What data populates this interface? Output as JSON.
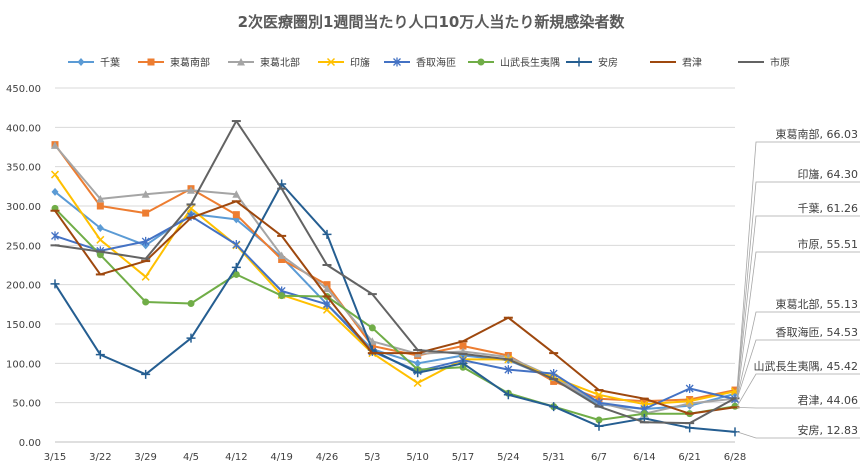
{
  "chart_data": {
    "type": "line",
    "title": "2次医療圏別1週間当たり人口10万人当たり新規感染者数",
    "xlabel": "",
    "ylabel": "",
    "ylim": [
      0,
      450
    ],
    "yticks": [
      "0.00",
      "50.00",
      "100.00",
      "150.00",
      "200.00",
      "250.00",
      "300.00",
      "350.00",
      "400.00",
      "450.00"
    ],
    "categories": [
      "3/15",
      "3/22",
      "3/29",
      "4/5",
      "4/12",
      "4/19",
      "4/26",
      "5/3",
      "5/10",
      "5/17",
      "5/24",
      "5/31",
      "6/7",
      "6/14",
      "6/21",
      "6/28"
    ],
    "grid": true,
    "legend": "top",
    "series": [
      {
        "name": "千葉",
        "color": "#5B9BD5",
        "marker": "diamond",
        "values": [
          318,
          272,
          250,
          290,
          283,
          235,
          175,
          118,
          100,
          110,
          104,
          80,
          48,
          42,
          46,
          61.26
        ]
      },
      {
        "name": "東葛南部",
        "color": "#ED7D31",
        "marker": "square",
        "values": [
          378,
          300,
          291,
          322,
          289,
          232,
          200,
          122,
          110,
          122,
          110,
          77,
          55,
          52,
          54,
          66.03
        ]
      },
      {
        "name": "東葛北部",
        "color": "#A5A5A5",
        "marker": "triangle",
        "values": [
          377,
          309,
          315,
          320,
          315,
          237,
          195,
          128,
          112,
          115,
          108,
          82,
          50,
          36,
          49,
          55.13
        ]
      },
      {
        "name": "印旛",
        "color": "#FFC000",
        "marker": "x",
        "values": [
          340,
          257,
          210,
          297,
          250,
          187,
          168,
          113,
          75,
          105,
          105,
          82,
          60,
          48,
          52,
          64.3
        ]
      },
      {
        "name": "香取海匝",
        "color": "#4472C4",
        "marker": "asterisk",
        "values": [
          262,
          243,
          255,
          287,
          251,
          192,
          175,
          115,
          90,
          104,
          92,
          87,
          50,
          42,
          68,
          54.53
        ]
      },
      {
        "name": "山武長生夷隅",
        "color": "#70AD47",
        "marker": "circle",
        "values": [
          297,
          238,
          178,
          176,
          213,
          186,
          185,
          145,
          92,
          95,
          62,
          45,
          28,
          36,
          36,
          45.42
        ]
      },
      {
        "name": "安房",
        "color": "#255E91",
        "marker": "plus",
        "values": [
          201,
          111,
          86,
          132,
          222,
          328,
          264,
          117,
          88,
          100,
          60,
          45,
          20,
          30,
          18,
          12.83
        ]
      },
      {
        "name": "君津",
        "color": "#9E480E",
        "marker": "dash",
        "values": [
          294,
          213,
          230,
          285,
          306,
          262,
          185,
          113,
          113,
          128,
          158,
          113,
          66,
          55,
          36,
          44.06
        ]
      },
      {
        "name": "市原",
        "color": "#636363",
        "marker": "dash",
        "values": [
          250,
          242,
          233,
          302,
          408,
          322,
          225,
          188,
          117,
          112,
          105,
          80,
          45,
          25,
          24,
          55.51
        ]
      }
    ],
    "callouts": [
      {
        "series": "東葛南部",
        "text": "東葛南部, 66.03"
      },
      {
        "series": "印旛",
        "text": "印旛, 64.30"
      },
      {
        "series": "千葉",
        "text": "千葉, 61.26"
      },
      {
        "series": "市原",
        "text": "市原, 55.51"
      },
      {
        "series": "東葛北部",
        "text": "東葛北部, 55.13"
      },
      {
        "series": "香取海匝",
        "text": "香取海匝, 54.53"
      },
      {
        "series": "山武長生夷隅",
        "text": "山武長生夷隅, 45.42"
      },
      {
        "series": "君津",
        "text": "君津, 44.06"
      },
      {
        "series": "安房",
        "text": "安房, 12.83"
      }
    ]
  }
}
